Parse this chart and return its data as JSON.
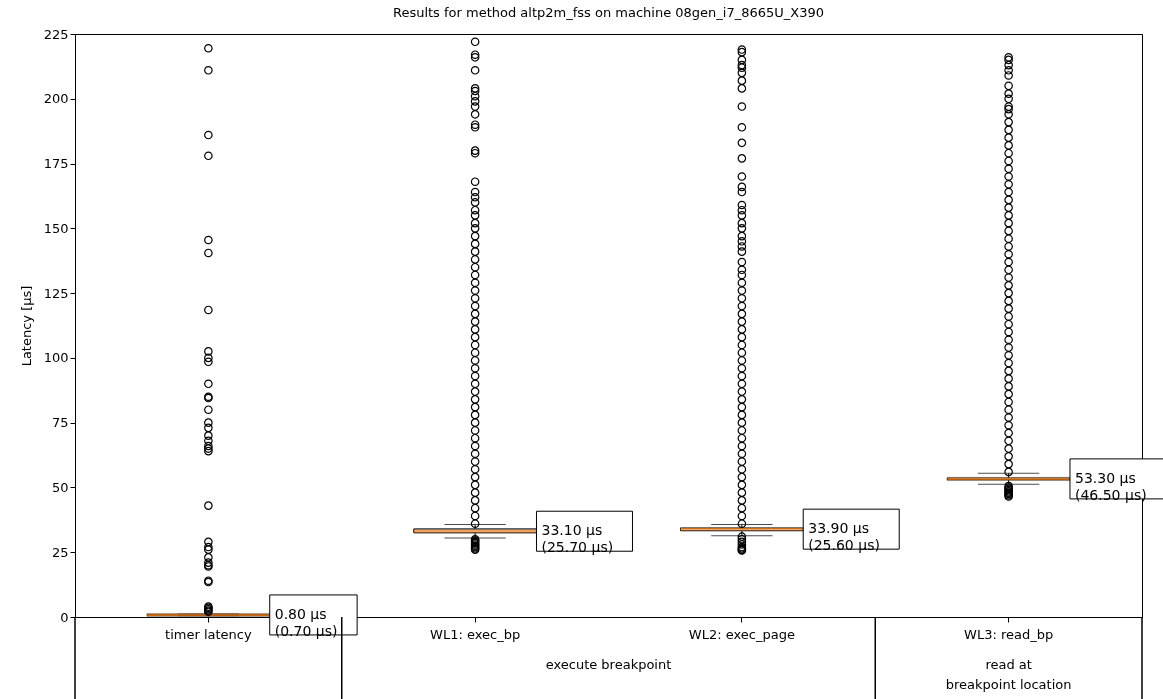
{
  "chart_data": {
    "type": "box",
    "title": "Results for method altp2m_fss on machine 08gen_i7_8665U_X390",
    "ylabel": "Latency [µs]",
    "categories": [
      "timer latency",
      "WL1: exec_bp",
      "WL2: exec_page",
      "WL3: read_bp"
    ],
    "boxes": [
      {
        "low": 0.5,
        "q1": 0.7,
        "median": 0.8,
        "q3": 0.9,
        "high": 1.2,
        "outliers": [
          2,
          2.5,
          3,
          3.5,
          4,
          13.5,
          14,
          19.5,
          20,
          21,
          23,
          26,
          27,
          29,
          43,
          64,
          65,
          66,
          68,
          70,
          73,
          75,
          80,
          84.5,
          85,
          90,
          98.5,
          100,
          102.5,
          118.5,
          140.5,
          145.5,
          178,
          186,
          211,
          219.5
        ]
      },
      {
        "low": 30.5,
        "q1": 32.5,
        "median": 33.1,
        "q3": 34,
        "high": 35.7,
        "outliers": [
          26,
          26.5,
          27,
          27.5,
          28,
          28.5,
          29,
          29.5,
          30,
          36,
          39,
          42,
          45,
          48,
          51,
          54,
          57,
          60,
          63,
          66,
          69,
          72,
          75,
          78,
          81,
          84,
          87,
          90,
          93,
          96,
          99,
          102,
          105,
          108,
          111,
          114,
          117,
          120,
          123,
          126,
          129,
          132,
          135,
          138,
          141,
          144,
          147,
          150,
          152,
          155,
          157,
          160,
          162,
          164,
          168,
          179,
          180,
          189,
          190,
          194,
          197,
          199,
          201,
          203,
          204,
          211,
          216,
          217,
          222
        ]
      },
      {
        "low": 31.4,
        "q1": 33.3,
        "median": 33.9,
        "q3": 34.3,
        "high": 35.7,
        "outliers": [
          25.7,
          26,
          26.5,
          27,
          28,
          29,
          30,
          31,
          36,
          39,
          42,
          45,
          48,
          51,
          54,
          57,
          60,
          63,
          66,
          69,
          72,
          75,
          78,
          81,
          84,
          87,
          90,
          93,
          96,
          99,
          102,
          105,
          108,
          111,
          114,
          117,
          120,
          123,
          126,
          129,
          132,
          134,
          137,
          141,
          143,
          145,
          147,
          150,
          152,
          155,
          157,
          159,
          164,
          166,
          170,
          177,
          183,
          189,
          197,
          204,
          207,
          210,
          212,
          213,
          215,
          218,
          219
        ]
      },
      {
        "low": 51.2,
        "q1": 53,
        "median": 53.3,
        "q3": 53.6,
        "high": 55.5,
        "outliers": [
          46.5,
          47,
          47.5,
          48,
          48.5,
          49,
          49.5,
          50,
          50.5,
          56,
          59,
          62,
          65,
          68,
          71,
          74,
          77,
          80,
          83,
          86,
          89,
          92,
          95,
          98,
          101,
          104,
          107,
          110,
          113,
          116,
          119,
          122,
          125,
          128,
          131,
          134,
          137,
          140,
          143,
          146,
          149,
          152,
          155,
          158,
          161,
          164,
          167,
          170,
          173,
          176,
          179,
          182,
          185,
          188,
          191,
          194,
          196,
          197,
          200,
          202,
          205,
          209,
          211,
          213,
          215,
          216
        ]
      }
    ],
    "ylim": [
      0,
      225
    ],
    "yticks": [
      0,
      25,
      50,
      75,
      100,
      125,
      150,
      175,
      200,
      225
    ],
    "grid": false,
    "annotations": [
      "0.80 µs\n(0.70 µs)",
      "33.10 µs\n(25.70 µs)",
      "33.90 µs\n(25.60 µs)",
      "53.30 µs\n(46.50 µs)",
      "execute breakpoint",
      "read at\nbreakpoint location"
    ]
  }
}
